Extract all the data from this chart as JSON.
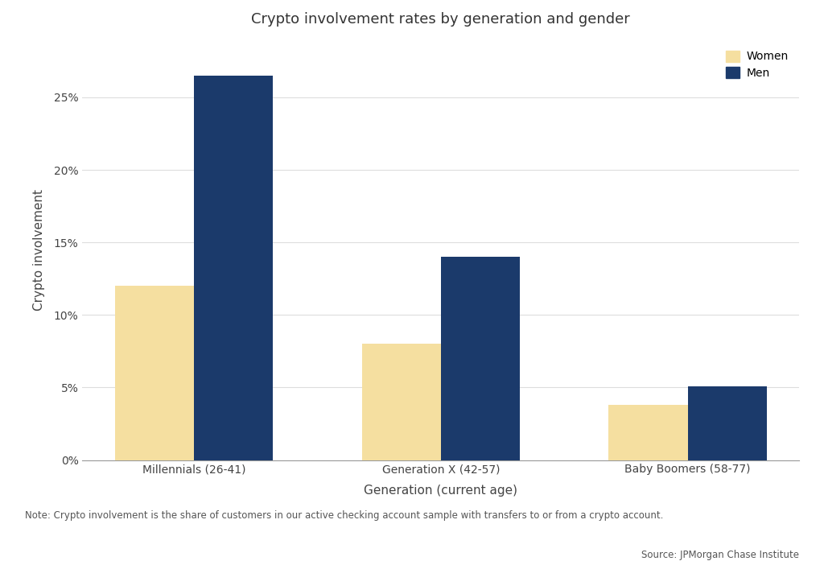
{
  "title": "Crypto involvement rates by generation and gender",
  "categories": [
    "Millennials (26-41)",
    "Generation X (42-57)",
    "Baby Boomers (58-77)"
  ],
  "women_values": [
    0.12,
    0.08,
    0.038
  ],
  "men_values": [
    0.265,
    0.14,
    0.051
  ],
  "women_color": "#F5DFA0",
  "men_color": "#1B3A6B",
  "ylabel": "Crypto involvement",
  "xlabel": "Generation (current age)",
  "yticks": [
    0,
    0.05,
    0.1,
    0.15,
    0.2,
    0.25
  ],
  "ytick_labels": [
    "0%",
    "5%",
    "10%",
    "15%",
    "20%",
    "25%"
  ],
  "ylim": [
    0,
    0.29
  ],
  "legend_labels": [
    "Women",
    "Men"
  ],
  "note": "Note: Crypto involvement is the share of customers in our active checking account sample with transfers to or from a crypto account.",
  "source": "Source: JPMorgan Chase Institute",
  "background_color": "#FFFFFF",
  "title_fontsize": 13,
  "axis_label_fontsize": 11,
  "tick_fontsize": 10,
  "note_fontsize": 8.5,
  "bar_width": 0.32,
  "grid_color": "#DDDDDD",
  "text_color": "#444444"
}
